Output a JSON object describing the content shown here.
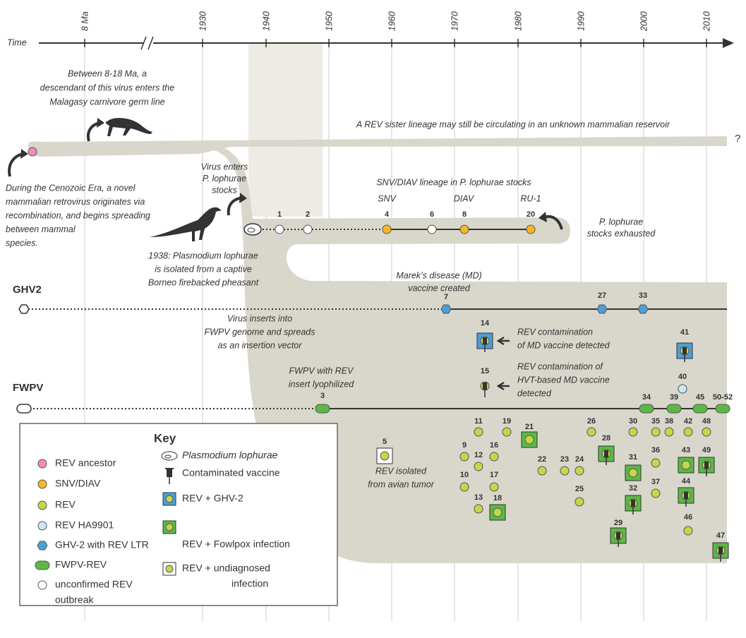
{
  "timeline": {
    "label": "Time",
    "ticks": [
      "8 Ma",
      "1930",
      "1940",
      "1950",
      "1960",
      "1970",
      "1980",
      "1990",
      "2000",
      "2010"
    ]
  },
  "lineages": {
    "ghv2": "GHV2",
    "fwpv": "FWPV",
    "unknown": "?"
  },
  "annotations": [
    {
      "lines": [
        "Between 8-18 Ma, a",
        "descendant of this virus enters the",
        "Malagasy carnivore germ line"
      ]
    },
    {
      "lines": [
        "A REV sister lineage may still be circulating in an unknown mammalian reservoir"
      ]
    },
    {
      "lines": [
        "During the Cenozoic Era, a novel",
        "mammalian retrovirus originates via",
        "recombination, and begins spreading",
        "between mammal",
        "species."
      ]
    },
    {
      "lines": [
        "Virus enters",
        "P. lophurae",
        "stocks"
      ]
    },
    {
      "lines": [
        "SNV/DIAV lineage in  P. lophurae stocks"
      ]
    },
    {
      "lines": [
        "SNV"
      ]
    },
    {
      "lines": [
        "DIAV"
      ]
    },
    {
      "lines": [
        "RU-1"
      ]
    },
    {
      "lines": [
        "P. lophurae",
        "stocks exhausted"
      ]
    },
    {
      "lines": [
        "1938: Plasmodium lophurae",
        "is isolated from a captive",
        "Borneo firebacked pheasant"
      ]
    },
    {
      "lines": [
        "Marek’s disease (MD)",
        "vaccine created"
      ]
    },
    {
      "lines": [
        "Virus inserts into",
        "FWPV genome and spreads",
        "as an insertion vector"
      ]
    },
    {
      "lines": [
        "REV contamination",
        "of MD vaccine detected"
      ]
    },
    {
      "lines": [
        "REV contamination of",
        "HVT-based MD vaccine",
        "detected"
      ]
    },
    {
      "lines": [
        "FWPV with REV",
        "insert lyophilized"
      ]
    },
    {
      "lines": [
        "REV isolated",
        "from avian tumor"
      ]
    }
  ],
  "nodes": [
    {
      "label": "1"
    },
    {
      "label": "2"
    },
    {
      "label": "4"
    },
    {
      "label": "6"
    },
    {
      "label": "8"
    },
    {
      "label": "20"
    },
    {
      "label": "7"
    },
    {
      "label": "27"
    },
    {
      "label": "33"
    },
    {
      "label": "14"
    },
    {
      "label": "41"
    },
    {
      "label": "15"
    },
    {
      "label": "40"
    },
    {
      "label": "3"
    },
    {
      "label": "34"
    },
    {
      "label": "39"
    },
    {
      "label": "45"
    },
    {
      "label": "50-52"
    },
    {
      "label": "5"
    },
    {
      "label": "11"
    },
    {
      "label": "19"
    },
    {
      "label": "9"
    },
    {
      "label": "12"
    },
    {
      "label": "16"
    },
    {
      "label": "10"
    },
    {
      "label": "17"
    },
    {
      "label": "13"
    },
    {
      "label": "18"
    },
    {
      "label": "21"
    },
    {
      "label": "22"
    },
    {
      "label": "23"
    },
    {
      "label": "24"
    },
    {
      "label": "25"
    },
    {
      "label": "26"
    },
    {
      "label": "28"
    },
    {
      "label": "30"
    },
    {
      "label": "31"
    },
    {
      "label": "32"
    },
    {
      "label": "29"
    },
    {
      "label": "35"
    },
    {
      "label": "38"
    },
    {
      "label": "42"
    },
    {
      "label": "48"
    },
    {
      "label": "36"
    },
    {
      "label": "37"
    },
    {
      "label": "43"
    },
    {
      "label": "49"
    },
    {
      "label": "44"
    },
    {
      "label": "46"
    },
    {
      "label": "47"
    }
  ],
  "key": {
    "title": "Key",
    "items": [
      {
        "lines": [
          "REV ancestor"
        ]
      },
      {
        "lines": [
          "SNV/DIAV"
        ]
      },
      {
        "lines": [
          "REV"
        ]
      },
      {
        "lines": [
          "REV HA9901"
        ]
      },
      {
        "lines": [
          "GHV-2 with REV LTR"
        ]
      },
      {
        "lines": [
          "FWPV-REV"
        ]
      },
      {
        "lines": [
          "unconfirmed REV",
          "outbreak"
        ]
      },
      {
        "lines": [
          "Plasmodium lophurae"
        ]
      },
      {
        "lines": [
          "Contaminated vaccine"
        ]
      },
      {
        "lines": [
          "REV + GHV-2"
        ]
      },
      {
        "lines": [
          "REV + Fowlpox infection"
        ]
      },
      {
        "lines": [
          "REV + undiagnosed",
          "infection"
        ]
      }
    ]
  }
}
